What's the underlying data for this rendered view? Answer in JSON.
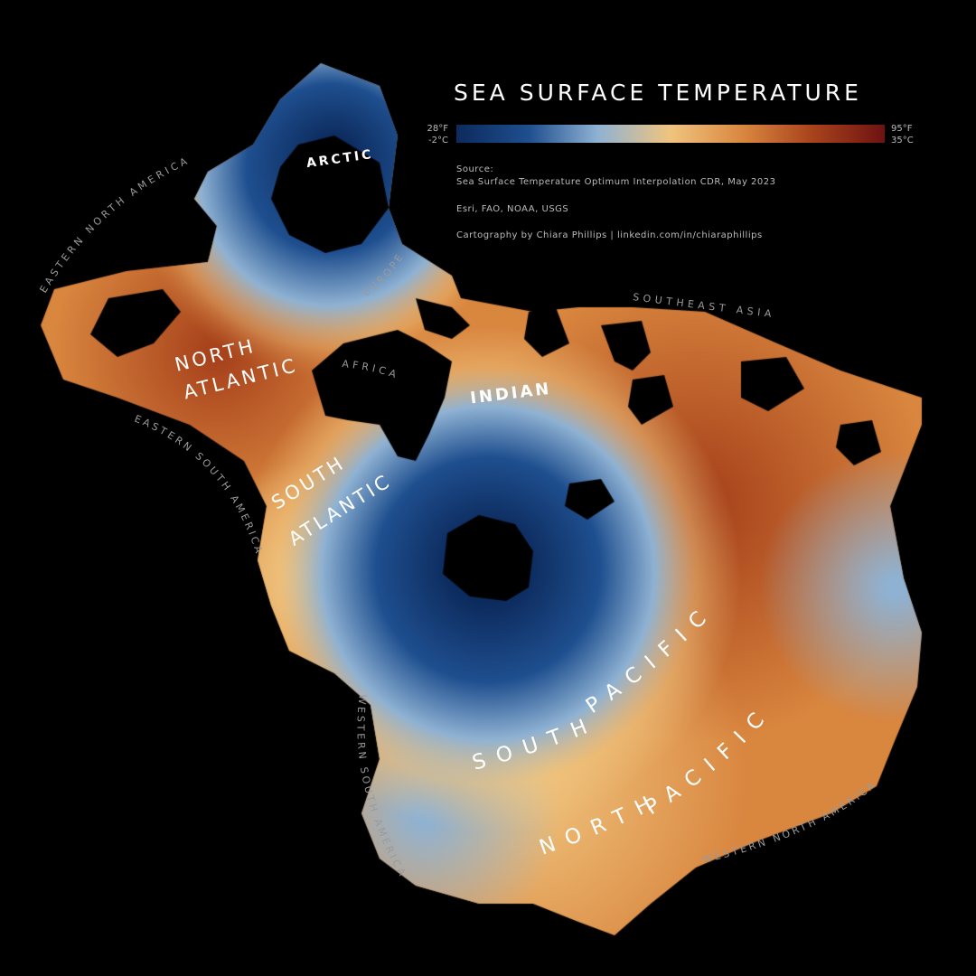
{
  "title": "SEA SURFACE TEMPERATURE",
  "legend": {
    "min_f": "28°F",
    "min_c": "-2°C",
    "max_f": "95°F",
    "max_c": "35°C",
    "colors": [
      "#0c2a5c",
      "#1f4f8f",
      "#8fb2d3",
      "#f0c47e",
      "#d9863f",
      "#a8431c",
      "#6e1212"
    ]
  },
  "credits": {
    "source_heading": "Source:",
    "source_text": "Sea Surface Temperature Optimum Interpolation CDR, May 2023",
    "basemap": "Esri, FAO, NOAA, USGS",
    "cartography": "Cartography by Chiara Phillips | linkedin.com/in/chiaraphillips"
  },
  "ocean_labels": {
    "arctic": "ARCTIC",
    "north_atlantic_1": "NORTH",
    "north_atlantic_2": "ATLANTIC",
    "indian": "INDIAN",
    "south_atlantic_1": "SOUTH",
    "south_atlantic_2": "ATLANTIC",
    "south_pacific_1": "SOUTH",
    "south_pacific_2": "PACIFIC",
    "north_pacific_1": "NORTH",
    "north_pacific_2": "PACIFIC"
  },
  "coast_labels": {
    "eastern_north_america_top": "EASTERN NORTH AMERICA",
    "europe": "EUROPE",
    "southeast_asia": "SOUTHEAST ASIA",
    "africa": "AFRICA",
    "eastern_south_america": "EASTERN SOUTH AMERICA",
    "western_south_america": "WESTERN SOUTH AMERICA",
    "western_north_america": "WESTERN NORTH AMERICA"
  }
}
